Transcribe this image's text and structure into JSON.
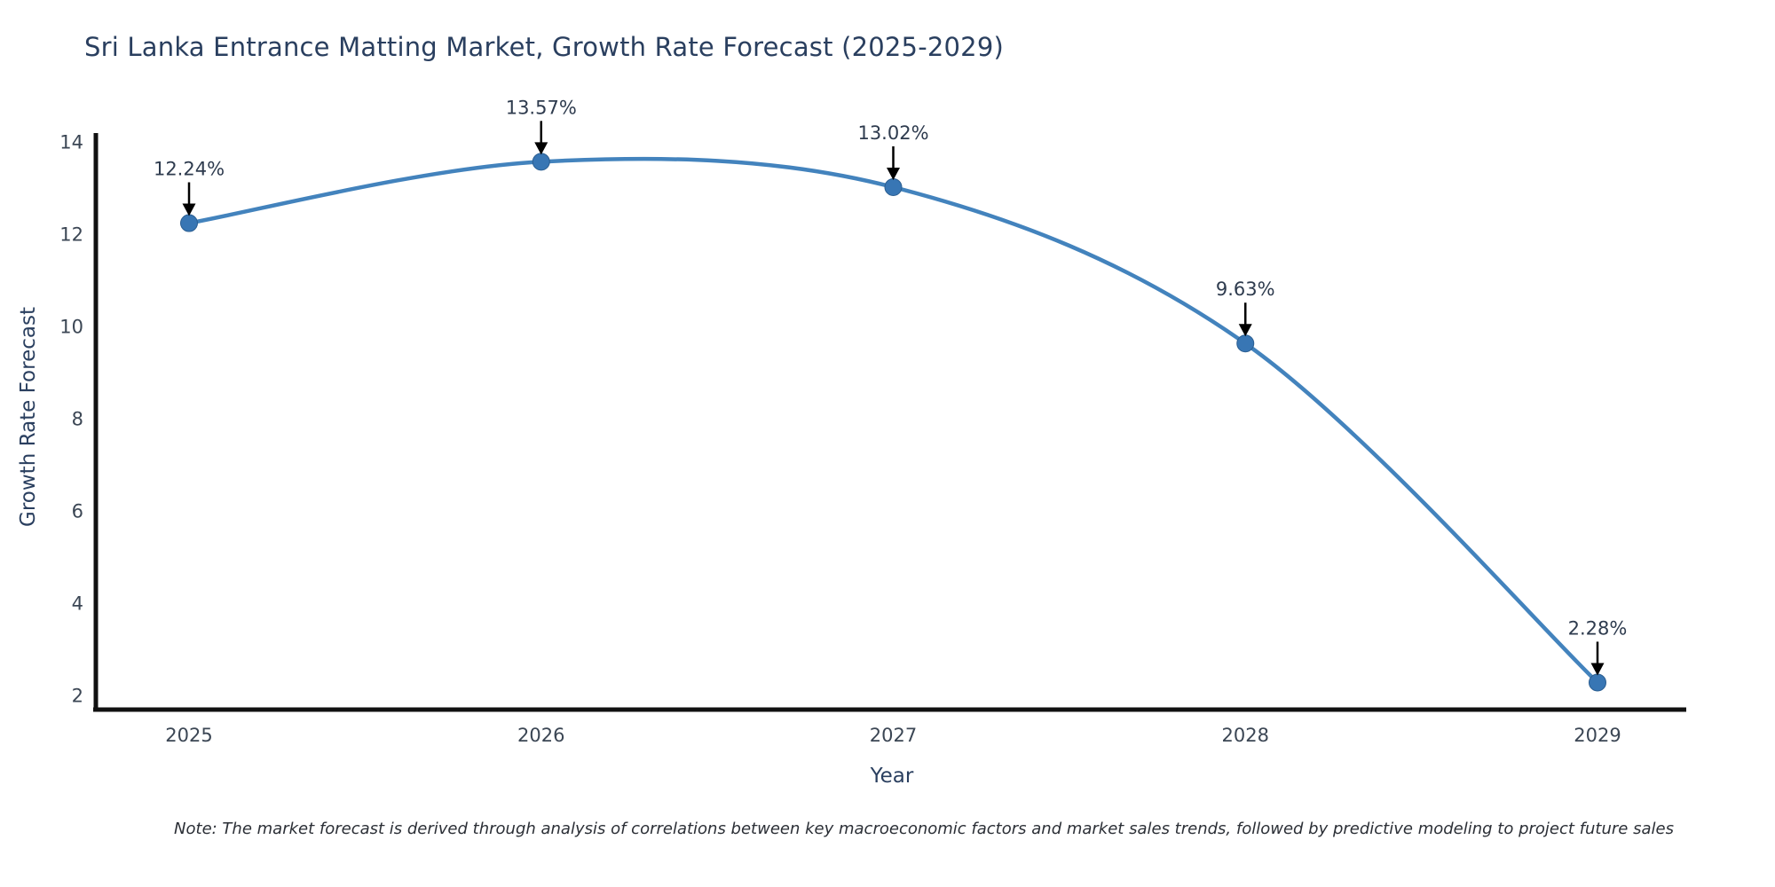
{
  "title": "Sri Lanka Entrance Matting Market, Growth Rate Forecast (2025-2029)",
  "note": "Note: The market forecast is derived through analysis of correlations between key macroeconomic factors and market sales trends, followed by predictive modeling to project future sales",
  "chart_data": {
    "type": "line",
    "line_shape": "spline",
    "x": [
      2025,
      2026,
      2027,
      2028,
      2029
    ],
    "series": [
      {
        "name": "Growth Rate Forecast",
        "values": [
          12.24,
          13.57,
          13.02,
          9.63,
          2.28
        ]
      }
    ],
    "data_labels": [
      "12.24%",
      "13.57%",
      "13.02%",
      "9.63%",
      "2.28%"
    ],
    "xlabel": "Year",
    "ylabel": "Growth Rate Forecast",
    "x_tick_labels": [
      "2025",
      "2026",
      "2027",
      "2028",
      "2029"
    ],
    "y_ticks": [
      2,
      4,
      6,
      8,
      10,
      12,
      14
    ],
    "ylim": [
      1.7,
      14.2
    ],
    "xlim": [
      2024.74,
      2029.25
    ],
    "grid": false,
    "legend": "none",
    "markers": true,
    "annotation_arrows": true,
    "colors": {
      "line": "#4383bd",
      "marker_fill": "#3876b4",
      "marker_edge": "#2b5e91",
      "axis_line": "#111111",
      "arrow": "#000000",
      "title_text": "#2a3f5f",
      "tick_text": "#3b4654",
      "data_label_text": "#2e3b4e",
      "axis_title_text": "#2a3f5f",
      "note_text": "#2b2f36",
      "background": "#ffffff"
    }
  }
}
